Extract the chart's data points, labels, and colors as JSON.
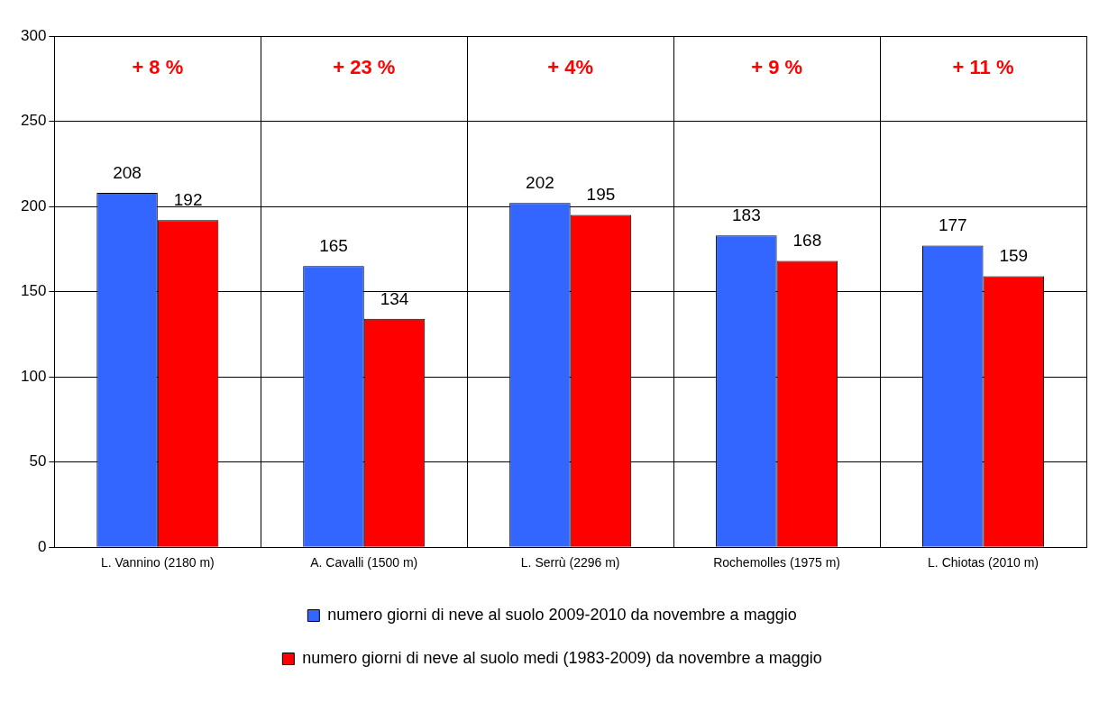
{
  "chart_data": {
    "type": "bar",
    "categories": [
      "L. Vannino (2180 m)",
      "A. Cavalli (1500 m)",
      "L. Serrù (2296 m)",
      "Rochemolles (1975 m)",
      "L. Chiotas (2010 m)"
    ],
    "series": [
      {
        "name": "numero giorni di neve al suolo 2009-2010 da novembre a maggio",
        "color": "#3366ff",
        "values": [
          208,
          165,
          202,
          183,
          177
        ]
      },
      {
        "name": "numero giorni di neve al suolo medi (1983-2009) da novembre a maggio",
        "color": "#ff0000",
        "values": [
          192,
          134,
          195,
          168,
          159
        ]
      }
    ],
    "ylim": [
      0,
      300
    ],
    "yticks": [
      0,
      50,
      100,
      150,
      200,
      250,
      300
    ],
    "grid": true,
    "legend": "bottom",
    "data_labels": true,
    "annotations": [
      "+ 8 %",
      "+ 23 %",
      "+ 4%",
      "+ 9 %",
      "+ 11 %"
    ]
  }
}
